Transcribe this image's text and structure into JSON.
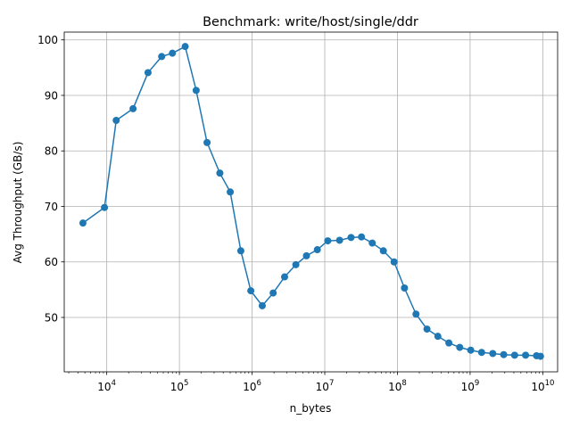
{
  "chart_data": {
    "type": "line",
    "title": "Benchmark: write/host/single/ddr",
    "xlabel": "n_bytes",
    "ylabel": "Avg Throughput (GB/s)",
    "xscale": "log",
    "xlim": [
      2600,
      16000000000
    ],
    "ylim": [
      40.2,
      101.4
    ],
    "grid": true,
    "line_color": "#1f77b4",
    "x_ticks": [
      {
        "exp": 4,
        "base": "10",
        "sup": "4"
      },
      {
        "exp": 5,
        "base": "10",
        "sup": "5"
      },
      {
        "exp": 6,
        "base": "10",
        "sup": "6"
      },
      {
        "exp": 7,
        "base": "10",
        "sup": "7"
      },
      {
        "exp": 8,
        "base": "10",
        "sup": "8"
      },
      {
        "exp": 9,
        "base": "10",
        "sup": "9"
      },
      {
        "exp": 10,
        "base": "10",
        "sup": "10"
      }
    ],
    "y_ticks": [
      {
        "value": 50,
        "label": "50"
      },
      {
        "value": 60,
        "label": "60"
      },
      {
        "value": 70,
        "label": "70"
      },
      {
        "value": 80,
        "label": "80"
      },
      {
        "value": 90,
        "label": "90"
      },
      {
        "value": 100,
        "label": "100"
      }
    ],
    "series": [
      {
        "x": [
          4700,
          9300,
          13500,
          23000,
          37000,
          57000,
          80000,
          120000,
          170000,
          240000,
          360000,
          500000,
          700000,
          960000,
          1380000,
          1950000,
          2800000,
          4000000,
          5600000,
          7900000,
          11000000,
          16000000,
          23000000,
          32000000,
          45000000,
          64000000,
          90000000,
          125000000,
          180000000,
          255000000,
          360000000,
          510000000,
          720000000,
          1020000000,
          1440000000,
          2050000000,
          2900000000,
          4100000000,
          5800000000,
          8200000000,
          9300000000
        ],
        "y": [
          67.0,
          69.8,
          85.5,
          87.6,
          94.1,
          97.0,
          97.6,
          98.8,
          90.9,
          81.5,
          76.0,
          72.6,
          62.0,
          54.8,
          52.1,
          54.4,
          57.3,
          59.5,
          61.1,
          62.2,
          63.8,
          63.9,
          64.4,
          64.5,
          63.4,
          62.0,
          60.0,
          55.3,
          50.6,
          47.9,
          46.6,
          45.4,
          44.6,
          44.1,
          43.7,
          43.5,
          43.3,
          43.2,
          43.2,
          43.1,
          43.0
        ]
      }
    ]
  }
}
